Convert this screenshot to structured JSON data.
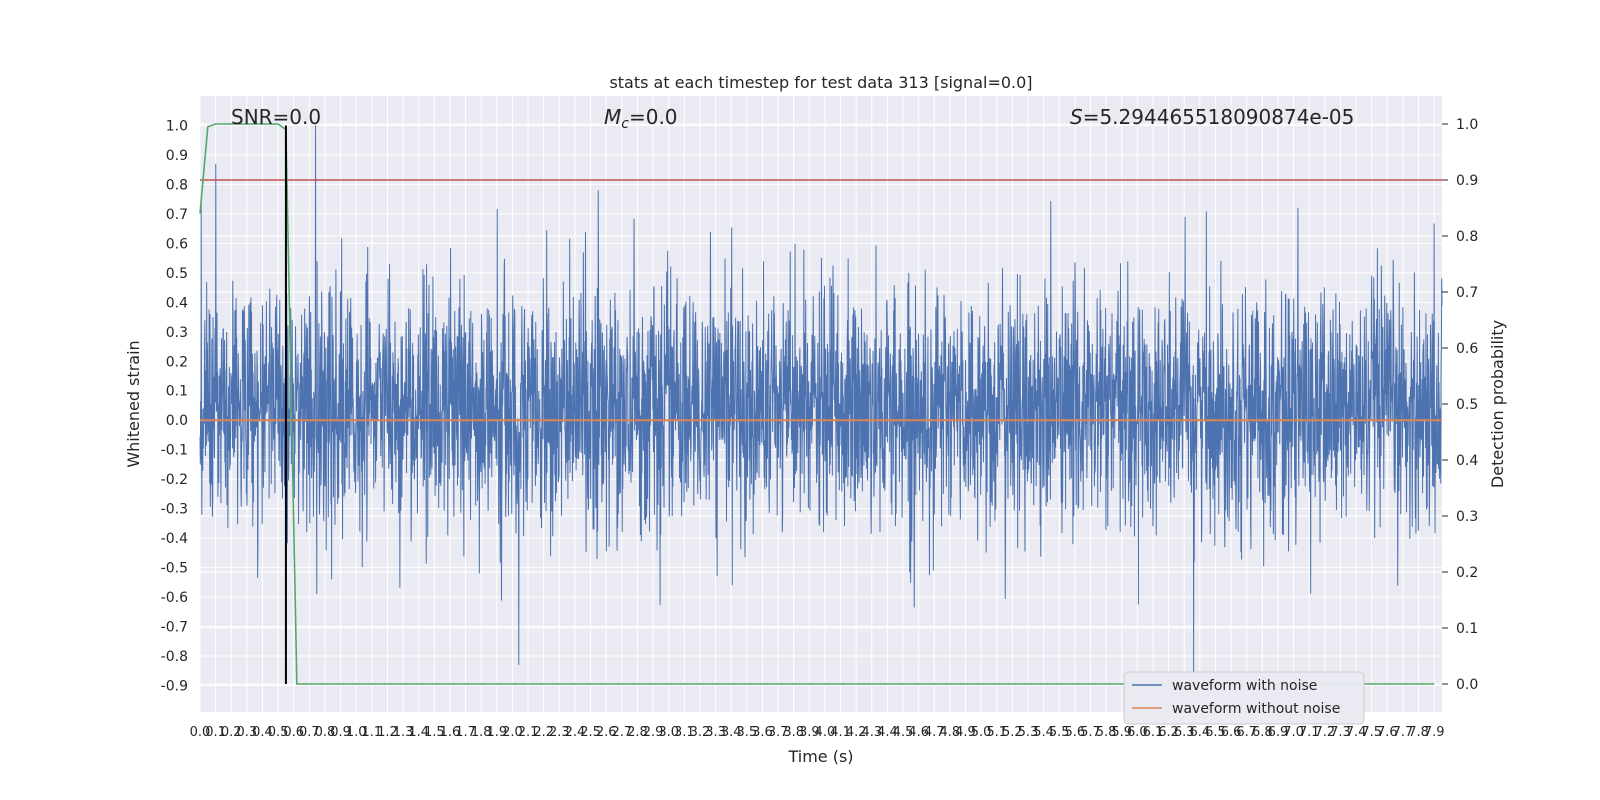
{
  "chart_data": {
    "type": "line",
    "title": "stats at each timestep for test data 313 [signal=0.0]",
    "xlabel": "Time (s)",
    "ylabel": "Whitened strain",
    "y2label": "Detection probability",
    "xlim": [
      0.0,
      7.95
    ],
    "ylim": [
      -0.99,
      1.1
    ],
    "y2lim": [
      -0.05,
      1.05
    ],
    "x_ticks": [
      "0.0",
      "0.1",
      "0.2",
      "0.3",
      "0.4",
      "0.5",
      "0.6",
      "0.7",
      "0.8",
      "0.9",
      "1.0",
      "1.1",
      "1.2",
      "1.3",
      "1.4",
      "1.5",
      "1.6",
      "1.7",
      "1.8",
      "1.9",
      "2.0",
      "2.1",
      "2.2",
      "2.3",
      "2.4",
      "2.5",
      "2.6",
      "2.7",
      "2.8",
      "2.9",
      "3.0",
      "3.1",
      "3.2",
      "3.3",
      "3.4",
      "3.5",
      "3.6",
      "3.7",
      "3.8",
      "3.9",
      "4.0",
      "4.1",
      "4.2",
      "4.3",
      "4.4",
      "4.5",
      "4.6",
      "4.7",
      "4.8",
      "4.9",
      "5.0",
      "5.1",
      "5.2",
      "5.3",
      "5.4",
      "5.5",
      "5.6",
      "5.7",
      "5.8",
      "5.9",
      "6.0",
      "6.1",
      "6.2",
      "6.3",
      "6.4",
      "6.5",
      "6.6",
      "6.7",
      "6.8",
      "6.9",
      "7.0",
      "7.1",
      "7.2",
      "7.3",
      "7.4",
      "7.5",
      "7.6",
      "7.7",
      "7.8",
      "7.9"
    ],
    "y_ticks": [
      "-0.9",
      "-0.8",
      "-0.7",
      "-0.6",
      "-0.5",
      "-0.4",
      "-0.3",
      "-0.2",
      "-0.1",
      "0.0",
      "0.1",
      "0.2",
      "0.3",
      "0.4",
      "0.5",
      "0.6",
      "0.7",
      "0.8",
      "0.9",
      "1.0"
    ],
    "y2_ticks": [
      "0.0",
      "0.1",
      "0.2",
      "0.3",
      "0.4",
      "0.5",
      "0.6",
      "0.7",
      "0.8",
      "0.9",
      "1.0"
    ],
    "annotations": {
      "snr": "SNR=0.0",
      "mc_symbol": "M",
      "mc_sub": "c",
      "mc_value": "=0.0",
      "s_symbol": "S",
      "s_value": "=5.294465518090874e-05"
    },
    "series": [
      {
        "name": "waveform with noise",
        "color": "#4c72b0",
        "kind": "noise",
        "envelope_typical": 0.45,
        "peak_max": 1.0,
        "peak_min": -0.87
      },
      {
        "name": "waveform without noise",
        "color": "#dd8452",
        "kind": "constant",
        "y": 0.0
      },
      {
        "color": "#55a868",
        "axis": "right",
        "x": [
          0.0,
          0.05,
          0.1,
          0.2,
          0.3,
          0.4,
          0.5,
          0.55,
          0.62,
          7.9
        ],
        "y": [
          0.84,
          0.995,
          1.0,
          1.0,
          1.0,
          1.0,
          1.0,
          0.99,
          0.0,
          0.0
        ]
      },
      {
        "color": "#c44e52",
        "axis": "right",
        "kind": "hline",
        "y": 0.9
      }
    ],
    "vline": {
      "x": 0.55,
      "color": "#000000"
    },
    "legend": {
      "placement": "lower-right"
    },
    "grid": true,
    "background": "#eaeaf2",
    "grid_color": "#ffffff"
  }
}
